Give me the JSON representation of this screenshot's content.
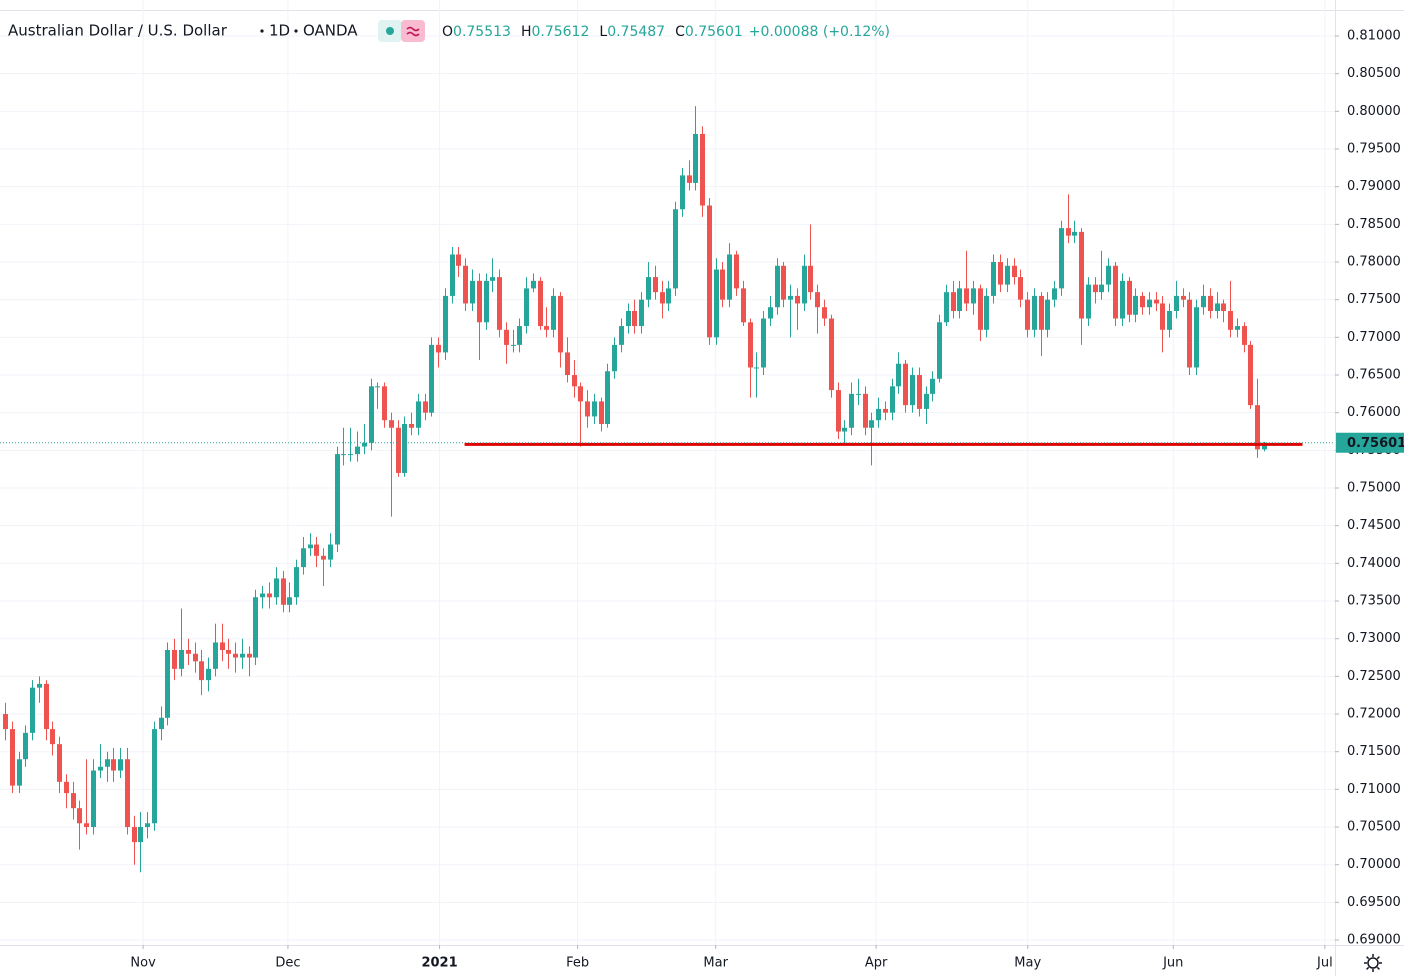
{
  "chart_data": {
    "type": "candlestick",
    "symbol": "Australian Dollar / U.S. Dollar",
    "interval": "1D",
    "source": "OANDA",
    "ohlc_prefixes": [
      "O",
      "H",
      "L",
      "C"
    ],
    "change_label": "+0.00088 (+0.12%)",
    "up_color": "#26a69a",
    "down_color": "#ef5350",
    "grid": true,
    "xlim": [
      -0.74,
      196.5
    ],
    "xticks": [
      {
        "value": 20.4,
        "label": "Nov"
      },
      {
        "value": 41.8,
        "label": "Dec"
      },
      {
        "value": 64.2,
        "label": "2021"
      },
      {
        "value": 84.6,
        "label": "Feb"
      },
      {
        "value": 105,
        "label": "Mar"
      },
      {
        "value": 128.7,
        "label": "Apr"
      },
      {
        "value": 151.1,
        "label": "May"
      },
      {
        "value": 172.6,
        "label": "Jun"
      },
      {
        "value": 195,
        "label": "Jul"
      }
    ],
    "ylim": [
      0.68934,
      0.81478
    ],
    "yticks": [
      {
        "value": 0.69,
        "label": "0.69000"
      },
      {
        "value": 0.695,
        "label": "0.69500"
      },
      {
        "value": 0.7,
        "label": "0.70000"
      },
      {
        "value": 0.705,
        "label": "0.70500"
      },
      {
        "value": 0.71,
        "label": "0.71000"
      },
      {
        "value": 0.715,
        "label": "0.71500"
      },
      {
        "value": 0.72,
        "label": "0.72000"
      },
      {
        "value": 0.725,
        "label": "0.72500"
      },
      {
        "value": 0.73,
        "label": "0.73000"
      },
      {
        "value": 0.735,
        "label": "0.73500"
      },
      {
        "value": 0.74,
        "label": "0.74000"
      },
      {
        "value": 0.745,
        "label": "0.74500"
      },
      {
        "value": 0.75,
        "label": "0.75000"
      },
      {
        "value": 0.755,
        "label": "0.75500"
      },
      {
        "value": 0.76,
        "label": "0.76000"
      },
      {
        "value": 0.765,
        "label": "0.76500"
      },
      {
        "value": 0.77,
        "label": "0.77000"
      },
      {
        "value": 0.775,
        "label": "0.77500"
      },
      {
        "value": 0.78,
        "label": "0.78000"
      },
      {
        "value": 0.785,
        "label": "0.78500"
      },
      {
        "value": 0.79,
        "label": "0.79000"
      },
      {
        "value": 0.795,
        "label": "0.79500"
      },
      {
        "value": 0.8,
        "label": "0.80000"
      },
      {
        "value": 0.805,
        "label": "0.80500"
      },
      {
        "value": 0.81,
        "label": "0.81000"
      }
    ],
    "hline": {
      "y": 0.7558,
      "x": [
        67.9,
        191.7
      ],
      "color": "#e00000"
    },
    "open": [
      0.72,
      0.718,
      0.7105,
      0.714,
      0.7175,
      0.7235,
      0.724,
      0.718,
      0.716,
      0.711,
      0.7095,
      0.7075,
      0.7055,
      0.705,
      0.7125,
      0.713,
      0.714,
      0.7125,
      0.714,
      0.705,
      0.703,
      0.705,
      0.7055,
      0.718,
      0.7195,
      0.7285,
      0.726,
      0.7285,
      0.728,
      0.727,
      0.7245,
      0.726,
      0.7295,
      0.7285,
      0.728,
      0.7275,
      0.728,
      0.7275,
      0.7355,
      0.736,
      0.7355,
      0.738,
      0.7345,
      0.7355,
      0.7395,
      0.742,
      0.7425,
      0.741,
      0.7405,
      0.7425,
      0.7545,
      0.7545,
      0.7545,
      0.7555,
      0.756,
      0.7635,
      0.7635,
      0.759,
      0.758,
      0.752,
      0.7585,
      0.758,
      0.7615,
      0.76,
      0.769,
      0.768,
      0.7755,
      0.781,
      0.7795,
      0.7745,
      0.7775,
      0.772,
      0.7775,
      0.778,
      0.771,
      0.769,
      0.769,
      0.7715,
      0.7765,
      0.7775,
      0.7715,
      0.771,
      0.7755,
      0.768,
      0.765,
      0.7635,
      0.7615,
      0.7595,
      0.7615,
      0.7585,
      0.7655,
      0.769,
      0.7715,
      0.7735,
      0.7715,
      0.775,
      0.778,
      0.776,
      0.7745,
      0.7765,
      0.787,
      0.7915,
      0.7905,
      0.797,
      0.7875,
      0.77,
      0.779,
      0.775,
      0.781,
      0.7765,
      0.772,
      0.766,
      0.766,
      0.7725,
      0.774,
      0.7795,
      0.775,
      0.7755,
      0.7745,
      0.7795,
      0.776,
      0.774,
      0.7725,
      0.763,
      0.7575,
      0.758,
      0.7625,
      0.7625,
      0.758,
      0.759,
      0.7605,
      0.76,
      0.7635,
      0.7665,
      0.761,
      0.765,
      0.7605,
      0.7625,
      0.7645,
      0.772,
      0.776,
      0.7735,
      0.7765,
      0.7745,
      0.7765,
      0.771,
      0.7755,
      0.78,
      0.777,
      0.7795,
      0.778,
      0.775,
      0.771,
      0.7755,
      0.771,
      0.775,
      0.7765,
      0.7845,
      0.7835,
      0.784,
      0.7725,
      0.777,
      0.776,
      0.777,
      0.7795,
      0.7725,
      0.7775,
      0.773,
      0.7755,
      0.774,
      0.775,
      0.7745,
      0.771,
      0.7735,
      0.7755,
      0.775,
      0.766,
      0.774,
      0.7755,
      0.7735,
      0.7745,
      0.7735,
      0.771,
      0.7715,
      0.769,
      0.761,
      0.75513
    ],
    "high": [
      0.7215,
      0.719,
      0.715,
      0.7185,
      0.7245,
      0.725,
      0.7245,
      0.719,
      0.717,
      0.712,
      0.711,
      0.7085,
      0.714,
      0.714,
      0.716,
      0.715,
      0.7155,
      0.7155,
      0.7155,
      0.7065,
      0.707,
      0.707,
      0.719,
      0.721,
      0.7295,
      0.73,
      0.734,
      0.73,
      0.7295,
      0.7285,
      0.7275,
      0.732,
      0.732,
      0.73,
      0.7295,
      0.73,
      0.729,
      0.7365,
      0.737,
      0.7375,
      0.7395,
      0.739,
      0.7375,
      0.7405,
      0.7435,
      0.744,
      0.7435,
      0.742,
      0.744,
      0.7555,
      0.758,
      0.758,
      0.7575,
      0.7585,
      0.7645,
      0.764,
      0.764,
      0.76,
      0.759,
      0.7595,
      0.76,
      0.7625,
      0.7625,
      0.77,
      0.77,
      0.7765,
      0.782,
      0.782,
      0.7805,
      0.779,
      0.7785,
      0.7785,
      0.7805,
      0.779,
      0.772,
      0.771,
      0.7725,
      0.778,
      0.7785,
      0.778,
      0.774,
      0.7765,
      0.776,
      0.77,
      0.767,
      0.764,
      0.763,
      0.7625,
      0.762,
      0.7665,
      0.77,
      0.7725,
      0.7745,
      0.775,
      0.776,
      0.78,
      0.7795,
      0.7775,
      0.7775,
      0.788,
      0.7925,
      0.7935,
      0.8007,
      0.798,
      0.7885,
      0.7805,
      0.78,
      0.7825,
      0.7815,
      0.7775,
      0.7725,
      0.768,
      0.7735,
      0.7755,
      0.7805,
      0.78,
      0.777,
      0.7765,
      0.781,
      0.785,
      0.777,
      0.775,
      0.773,
      0.764,
      0.759,
      0.764,
      0.7645,
      0.7635,
      0.76,
      0.762,
      0.7615,
      0.7645,
      0.768,
      0.767,
      0.766,
      0.766,
      0.7635,
      0.7655,
      0.773,
      0.777,
      0.7775,
      0.7775,
      0.7815,
      0.7775,
      0.777,
      0.7765,
      0.781,
      0.781,
      0.7805,
      0.7805,
      0.779,
      0.776,
      0.7765,
      0.776,
      0.776,
      0.7775,
      0.7855,
      0.789,
      0.7855,
      0.7845,
      0.778,
      0.778,
      0.7815,
      0.7805,
      0.78,
      0.7785,
      0.778,
      0.7765,
      0.776,
      0.776,
      0.776,
      0.7755,
      0.7745,
      0.7775,
      0.7765,
      0.776,
      0.775,
      0.777,
      0.7765,
      0.776,
      0.775,
      0.7775,
      0.7725,
      0.772,
      0.7695,
      0.7645,
      0.75612
    ],
    "low": [
      0.7165,
      0.7095,
      0.7095,
      0.713,
      0.7165,
      0.7215,
      0.7165,
      0.7145,
      0.7095,
      0.7075,
      0.706,
      0.702,
      0.704,
      0.704,
      0.7115,
      0.711,
      0.711,
      0.7115,
      0.704,
      0.7,
      0.699,
      0.7035,
      0.7045,
      0.7165,
      0.7185,
      0.7245,
      0.725,
      0.7265,
      0.7255,
      0.7225,
      0.723,
      0.725,
      0.727,
      0.726,
      0.7255,
      0.726,
      0.725,
      0.7265,
      0.734,
      0.734,
      0.7345,
      0.7335,
      0.7335,
      0.7345,
      0.7385,
      0.741,
      0.7395,
      0.737,
      0.7395,
      0.7415,
      0.753,
      0.7535,
      0.7535,
      0.7545,
      0.755,
      0.7605,
      0.758,
      0.7462,
      0.7515,
      0.7515,
      0.757,
      0.757,
      0.759,
      0.7595,
      0.766,
      0.767,
      0.7745,
      0.778,
      0.7735,
      0.7735,
      0.767,
      0.771,
      0.776,
      0.77,
      0.7665,
      0.768,
      0.768,
      0.7705,
      0.776,
      0.771,
      0.77,
      0.77,
      0.766,
      0.764,
      0.762,
      0.7555,
      0.758,
      0.7585,
      0.7575,
      0.758,
      0.7645,
      0.768,
      0.7705,
      0.7705,
      0.7705,
      0.774,
      0.775,
      0.7725,
      0.7735,
      0.7755,
      0.786,
      0.7895,
      0.7895,
      0.786,
      0.769,
      0.769,
      0.774,
      0.774,
      0.7755,
      0.7715,
      0.762,
      0.762,
      0.765,
      0.7715,
      0.773,
      0.774,
      0.77,
      0.771,
      0.7735,
      0.775,
      0.7705,
      0.7715,
      0.762,
      0.7565,
      0.756,
      0.757,
      0.761,
      0.757,
      0.753,
      0.758,
      0.759,
      0.759,
      0.7625,
      0.76,
      0.76,
      0.7595,
      0.7585,
      0.7615,
      0.764,
      0.7715,
      0.7725,
      0.7725,
      0.7735,
      0.773,
      0.7695,
      0.77,
      0.7745,
      0.776,
      0.776,
      0.777,
      0.774,
      0.77,
      0.77,
      0.7675,
      0.77,
      0.774,
      0.7755,
      0.7825,
      0.7825,
      0.769,
      0.7715,
      0.7745,
      0.775,
      0.776,
      0.7715,
      0.7715,
      0.772,
      0.772,
      0.773,
      0.773,
      0.7735,
      0.768,
      0.77,
      0.7725,
      0.774,
      0.765,
      0.765,
      0.773,
      0.7725,
      0.7725,
      0.772,
      0.77,
      0.77,
      0.768,
      0.7605,
      0.754,
      0.75487
    ],
    "close": [
      0.718,
      0.7105,
      0.714,
      0.7175,
      0.7235,
      0.724,
      0.718,
      0.716,
      0.711,
      0.7095,
      0.7075,
      0.7055,
      0.705,
      0.7125,
      0.713,
      0.714,
      0.7125,
      0.714,
      0.705,
      0.703,
      0.705,
      0.7055,
      0.718,
      0.7195,
      0.7285,
      0.726,
      0.7285,
      0.728,
      0.727,
      0.7245,
      0.726,
      0.7295,
      0.7285,
      0.728,
      0.7275,
      0.728,
      0.7275,
      0.7355,
      0.736,
      0.7355,
      0.738,
      0.7345,
      0.7355,
      0.7395,
      0.742,
      0.7425,
      0.741,
      0.7405,
      0.7425,
      0.7545,
      0.7545,
      0.7545,
      0.7555,
      0.756,
      0.7635,
      0.7635,
      0.759,
      0.758,
      0.752,
      0.7585,
      0.758,
      0.7615,
      0.76,
      0.769,
      0.768,
      0.7755,
      0.781,
      0.7795,
      0.7745,
      0.7775,
      0.772,
      0.7775,
      0.778,
      0.771,
      0.769,
      0.769,
      0.7715,
      0.7765,
      0.7775,
      0.7715,
      0.771,
      0.7755,
      0.768,
      0.765,
      0.7635,
      0.7615,
      0.7595,
      0.7615,
      0.7585,
      0.7655,
      0.769,
      0.7715,
      0.7735,
      0.7715,
      0.775,
      0.778,
      0.776,
      0.7745,
      0.7765,
      0.787,
      0.7915,
      0.7905,
      0.797,
      0.7875,
      0.77,
      0.779,
      0.775,
      0.781,
      0.7765,
      0.772,
      0.766,
      0.766,
      0.7725,
      0.774,
      0.7795,
      0.775,
      0.7755,
      0.7745,
      0.7795,
      0.776,
      0.774,
      0.7725,
      0.763,
      0.7575,
      0.758,
      0.7625,
      0.7625,
      0.758,
      0.759,
      0.7605,
      0.76,
      0.7635,
      0.7665,
      0.761,
      0.765,
      0.7605,
      0.7625,
      0.7645,
      0.772,
      0.776,
      0.7735,
      0.7765,
      0.7745,
      0.7765,
      0.771,
      0.7755,
      0.78,
      0.777,
      0.7795,
      0.778,
      0.775,
      0.771,
      0.7755,
      0.771,
      0.775,
      0.7765,
      0.7845,
      0.7835,
      0.784,
      0.7725,
      0.777,
      0.776,
      0.777,
      0.7795,
      0.7725,
      0.7775,
      0.773,
      0.7755,
      0.774,
      0.775,
      0.7745,
      0.771,
      0.7735,
      0.7755,
      0.775,
      0.766,
      0.774,
      0.7755,
      0.7735,
      0.7745,
      0.7735,
      0.771,
      0.7715,
      0.769,
      0.761,
      0.75513,
      0.75601
    ]
  }
}
